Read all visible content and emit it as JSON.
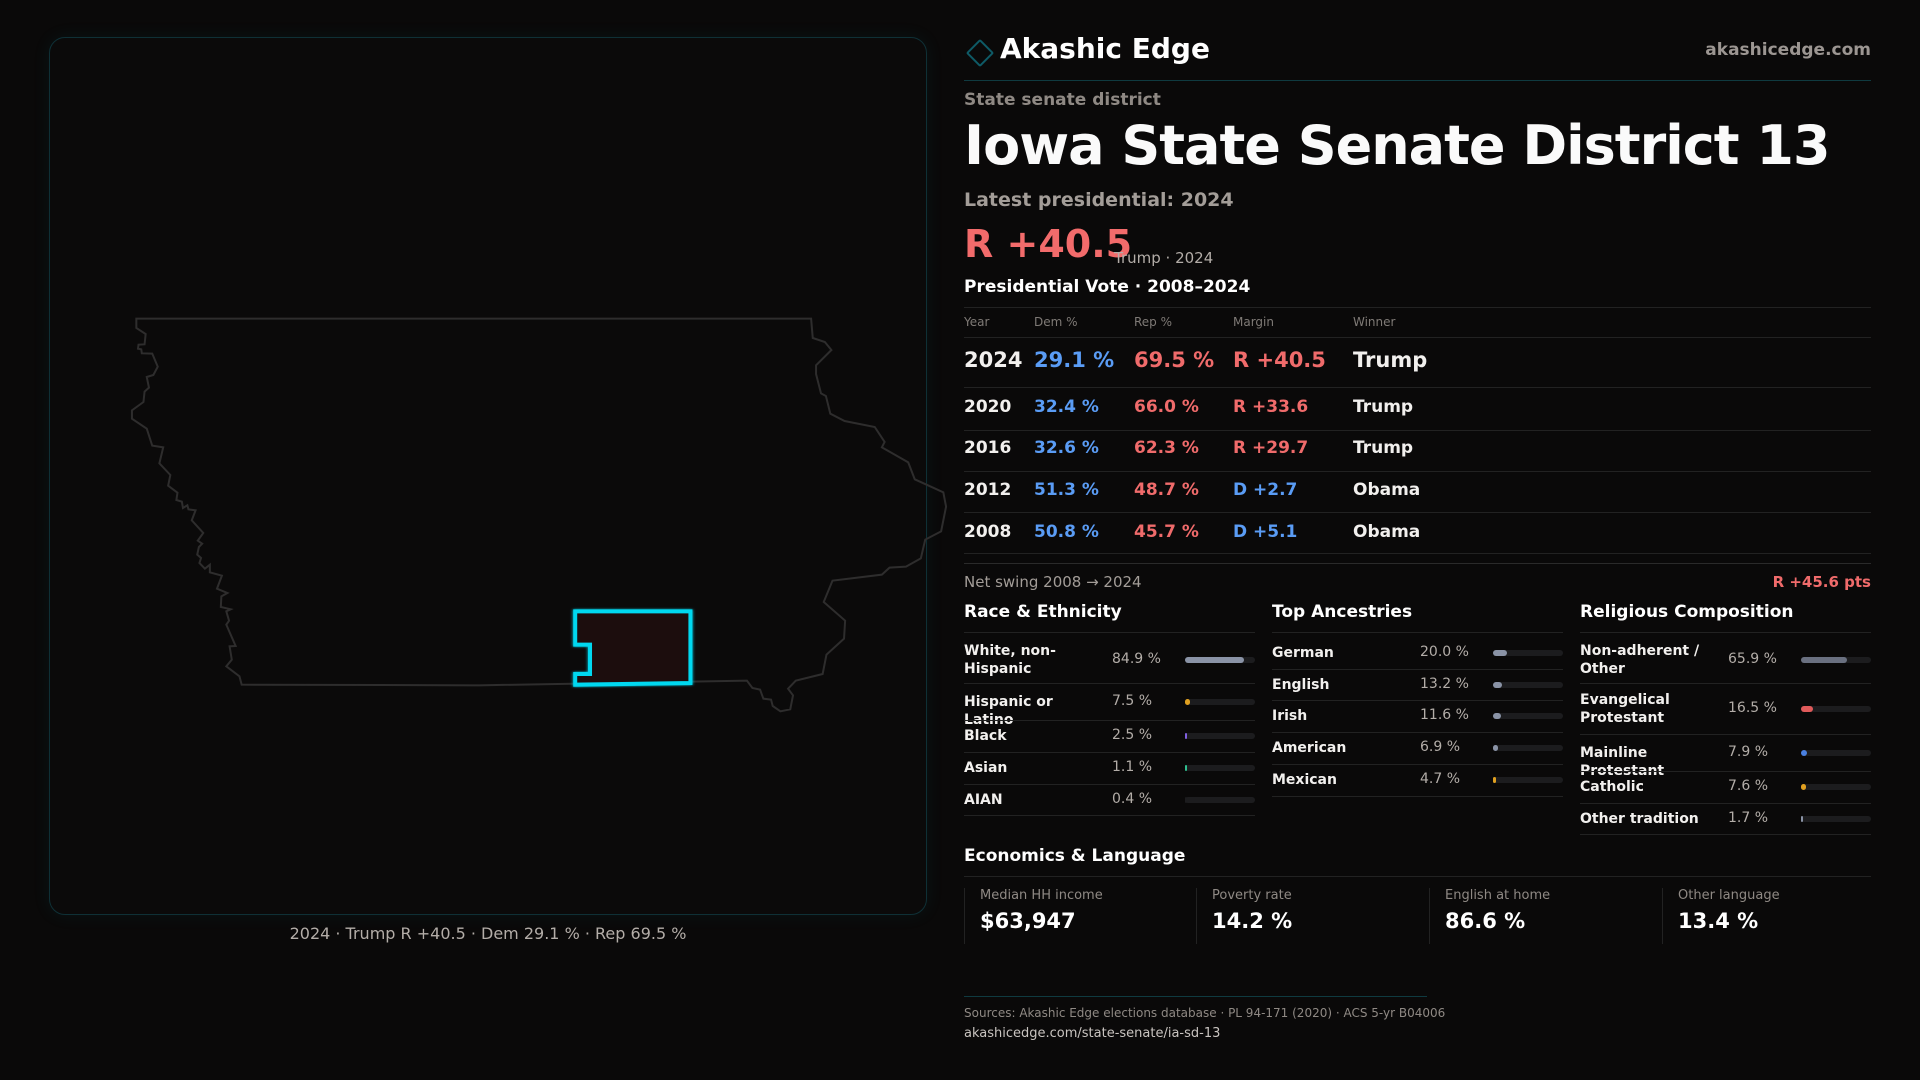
{
  "brand": {
    "name": "Akashic Edge",
    "site": "akashicedge.com",
    "icon": "diamond-logo-icon"
  },
  "header": {
    "kicker": "State senate district",
    "title": "Iowa State Senate District 13",
    "latest": "Latest presidential: 2024",
    "margin": "R +40.5",
    "margin_sub": "Trump · 2024"
  },
  "map": {
    "caption": "2024 · Trump R +40.5 · Dem 29.1 % · Rep 69.5 %",
    "highlight_color": "#00d8f0"
  },
  "vote": {
    "title": "Presidential Vote · 2008–2024",
    "headers": [
      "Year",
      "Dem %",
      "Rep %",
      "Margin",
      "Winner"
    ],
    "rows": [
      {
        "year": "2024",
        "dem": "29.1 %",
        "rep": "69.5 %",
        "margin": "R +40.5",
        "party": "R",
        "winner": "Trump"
      },
      {
        "year": "2020",
        "dem": "32.4 %",
        "rep": "66.0 %",
        "margin": "R +33.6",
        "party": "R",
        "winner": "Trump"
      },
      {
        "year": "2016",
        "dem": "32.6 %",
        "rep": "62.3 %",
        "margin": "R +29.7",
        "party": "R",
        "winner": "Trump"
      },
      {
        "year": "2012",
        "dem": "51.3 %",
        "rep": "48.7 %",
        "margin": "D +2.7",
        "party": "D",
        "winner": "Obama"
      },
      {
        "year": "2008",
        "dem": "50.8 %",
        "rep": "45.7 %",
        "margin": "D +5.1",
        "party": "D",
        "winner": "Obama"
      }
    ],
    "swing_label": "Net swing 2008 → 2024",
    "swing_value": "R +45.6 pts"
  },
  "colors": {
    "dem": "#5a9cf5",
    "rep": "#f06b6b"
  },
  "sections": [
    {
      "title": "Race & Ethnicity",
      "rows": [
        {
          "label": "White, non-Hispanic",
          "value": "84.9 %",
          "pct": 84.9,
          "color": "#8a93a6"
        },
        {
          "label": "Hispanic or Latino",
          "value": "7.5 %",
          "pct": 7.5,
          "color": "#e0a020"
        },
        {
          "label": "Black",
          "value": "2.5 %",
          "pct": 2.5,
          "color": "#8060e0"
        },
        {
          "label": "Asian",
          "value": "1.1 %",
          "pct": 1.1,
          "color": "#30c090"
        },
        {
          "label": "AIAN",
          "value": "0.4 %",
          "pct": 0.4,
          "color": "#1c1c1e"
        }
      ]
    },
    {
      "title": "Top Ancestries",
      "rows": [
        {
          "label": "German",
          "value": "20.0 %",
          "pct": 20.0,
          "color": "#8a93a6"
        },
        {
          "label": "English",
          "value": "13.2 %",
          "pct": 13.2,
          "color": "#8a93a6"
        },
        {
          "label": "Irish",
          "value": "11.6 %",
          "pct": 11.6,
          "color": "#8a93a6"
        },
        {
          "label": "American",
          "value": "6.9 %",
          "pct": 6.9,
          "color": "#8a93a6"
        },
        {
          "label": "Mexican",
          "value": "4.7 %",
          "pct": 4.7,
          "color": "#e0a020"
        }
      ]
    },
    {
      "title": "Religious Composition",
      "rows": [
        {
          "label": "Non-adherent / Other",
          "value": "65.9 %",
          "pct": 65.9,
          "color": "#6a7080"
        },
        {
          "label": "Evangelical Protestant",
          "value": "16.5 %",
          "pct": 16.5,
          "color": "#e05a5a"
        },
        {
          "label": "Mainline Protestant",
          "value": "7.9 %",
          "pct": 7.9,
          "color": "#4a80e0"
        },
        {
          "label": "Catholic",
          "value": "7.6 %",
          "pct": 7.6,
          "color": "#e0a020"
        },
        {
          "label": "Other tradition",
          "value": "1.7 %",
          "pct": 1.7,
          "color": "#8a93a6"
        }
      ]
    }
  ],
  "economics": {
    "title": "Economics & Language",
    "stats": [
      {
        "label": "Median HH income",
        "value": "$63,947"
      },
      {
        "label": "Poverty rate",
        "value": "14.2 %"
      },
      {
        "label": "English at home",
        "value": "86.6 %"
      },
      {
        "label": "Other language",
        "value": "13.4 %"
      }
    ]
  },
  "footer": {
    "sources": "Sources: Akashic Edge elections database · PL 94-171 (2020) · ACS 5-yr B04006",
    "url": "akashicedge.com/state-senate/ia-sd-13"
  }
}
